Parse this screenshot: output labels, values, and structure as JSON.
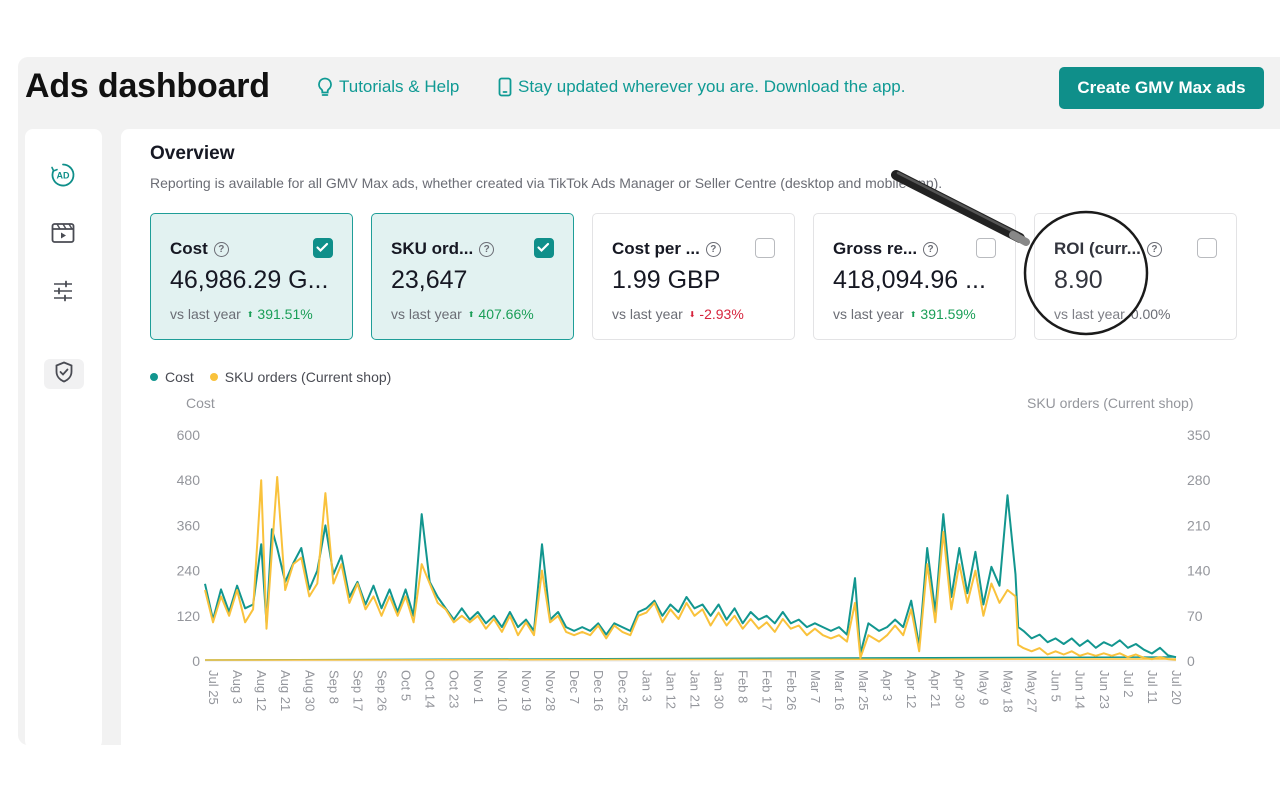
{
  "header": {
    "title": "Ads dashboard",
    "tutorials": "Tutorials & Help",
    "download": "Stay updated wherever you are. Download the app.",
    "create_button": "Create GMV Max ads"
  },
  "sidebar": {
    "items": [
      {
        "icon": "ad-icon",
        "active": true
      },
      {
        "icon": "video-icon",
        "active": false
      },
      {
        "icon": "settings-sliders-icon",
        "active": false
      },
      {
        "icon": "shield-check-icon",
        "active": false
      }
    ]
  },
  "overview": {
    "title": "Overview",
    "subtitle": "Reporting is available for all GMV Max ads, whether created via TikTok Ads Manager or Seller Centre (desktop and mobile app).",
    "vs_label": "vs last year",
    "cards": [
      {
        "label": "Cost",
        "value": "46,986.29 G...",
        "delta": "391.51%",
        "direction": "up",
        "selected": true
      },
      {
        "label": "SKU ord...",
        "value": "23,647",
        "delta": "407.66%",
        "direction": "up",
        "selected": true
      },
      {
        "label": "Cost per ...",
        "value": "1.99 GBP",
        "delta": "-2.93%",
        "direction": "down",
        "selected": false
      },
      {
        "label": "Gross re...",
        "value": "418,094.96 ...",
        "delta": "391.59%",
        "direction": "up",
        "selected": false
      },
      {
        "label": "ROI (curr...",
        "value": "8.90",
        "delta": "0.00%",
        "direction": "none",
        "selected": false
      }
    ]
  },
  "colors": {
    "accent": "#0f8f8a",
    "cost_series": "#12968f",
    "orders_series": "#f9c23c",
    "up": "#1a9e57",
    "down": "#d6243d"
  },
  "chart_data": {
    "type": "line",
    "legend": [
      "Cost",
      "SKU orders (Current shop)"
    ],
    "y_left_label": "Cost",
    "y_right_label": "SKU orders (Current shop)",
    "y_left_ticks": [
      "0",
      "120",
      "240",
      "360",
      "480",
      "600"
    ],
    "y_right_ticks": [
      "0",
      "70",
      "140",
      "210",
      "280",
      "350"
    ],
    "y_left_range": [
      0,
      600
    ],
    "y_right_range": [
      0,
      350
    ],
    "x_tick_labels": [
      "Jul 25",
      "Aug 3",
      "Aug 12",
      "Aug 21",
      "Aug 30",
      "Sep 8",
      "Sep 17",
      "Sep 26",
      "Oct 5",
      "Oct 14",
      "Oct 23",
      "Nov 1",
      "Nov 10",
      "Nov 19",
      "Nov 28",
      "Dec 7",
      "Dec 16",
      "Dec 25",
      "Jan 3",
      "Jan 12",
      "Jan 21",
      "Jan 30",
      "Feb 8",
      "Feb 17",
      "Feb 26",
      "Mar 7",
      "Mar 16",
      "Mar 25",
      "Apr 3",
      "Apr 12",
      "Apr 21",
      "Apr 30",
      "May 9",
      "May 18",
      "May 27",
      "Jun 5",
      "Jun 14",
      "Jun 23",
      "Jul 2",
      "Jul 11",
      "Jul 20"
    ],
    "grid": false,
    "series": [
      {
        "name": "Cost",
        "axis": "left",
        "points": [
          [
            "Jul 25",
            205
          ],
          [
            "Jul 28",
            110
          ],
          [
            "Jul 31",
            190
          ],
          [
            "Aug 3",
            130
          ],
          [
            "Aug 6",
            200
          ],
          [
            "Aug 9",
            140
          ],
          [
            "Aug 12",
            150
          ],
          [
            "Aug 15",
            310
          ],
          [
            "Aug 17",
            100
          ],
          [
            "Aug 19",
            350
          ],
          [
            "Aug 21",
            300
          ],
          [
            "Aug 24",
            210
          ],
          [
            "Aug 27",
            260
          ],
          [
            "Aug 30",
            300
          ],
          [
            "Sep 2",
            190
          ],
          [
            "Sep 5",
            240
          ],
          [
            "Sep 8",
            360
          ],
          [
            "Sep 11",
            230
          ],
          [
            "Sep 14",
            280
          ],
          [
            "Sep 17",
            170
          ],
          [
            "Sep 20",
            210
          ],
          [
            "Sep 23",
            150
          ],
          [
            "Sep 26",
            200
          ],
          [
            "Sep 29",
            140
          ],
          [
            "Oct 2",
            190
          ],
          [
            "Oct 5",
            130
          ],
          [
            "Oct 8",
            190
          ],
          [
            "Oct 11",
            120
          ],
          [
            "Oct 14",
            390
          ],
          [
            "Oct 17",
            210
          ],
          [
            "Oct 20",
            170
          ],
          [
            "Oct 23",
            140
          ],
          [
            "Oct 26",
            110
          ],
          [
            "Oct 29",
            140
          ],
          [
            "Nov 1",
            110
          ],
          [
            "Nov 4",
            130
          ],
          [
            "Nov 7",
            100
          ],
          [
            "Nov 10",
            120
          ],
          [
            "Nov 13",
            90
          ],
          [
            "Nov 16",
            130
          ],
          [
            "Nov 19",
            90
          ],
          [
            "Nov 22",
            110
          ],
          [
            "Nov 25",
            80
          ],
          [
            "Nov 28",
            310
          ],
          [
            "Dec 1",
            110
          ],
          [
            "Dec 4",
            130
          ],
          [
            "Dec 7",
            90
          ],
          [
            "Dec 10",
            80
          ],
          [
            "Dec 13",
            90
          ],
          [
            "Dec 16",
            80
          ],
          [
            "Dec 19",
            100
          ],
          [
            "Dec 22",
            70
          ],
          [
            "Dec 25",
            100
          ],
          [
            "Dec 28",
            90
          ],
          [
            "Dec 31",
            80
          ],
          [
            "Jan 3",
            130
          ],
          [
            "Jan 6",
            140
          ],
          [
            "Jan 9",
            160
          ],
          [
            "Jan 12",
            120
          ],
          [
            "Jan 15",
            150
          ],
          [
            "Jan 18",
            130
          ],
          [
            "Jan 21",
            170
          ],
          [
            "Jan 24",
            140
          ],
          [
            "Jan 27",
            150
          ],
          [
            "Jan 30",
            120
          ],
          [
            "Feb 2",
            150
          ],
          [
            "Feb 5",
            110
          ],
          [
            "Feb 8",
            140
          ],
          [
            "Feb 11",
            100
          ],
          [
            "Feb 14",
            130
          ],
          [
            "Feb 17",
            110
          ],
          [
            "Feb 20",
            120
          ],
          [
            "Feb 23",
            100
          ],
          [
            "Feb 26",
            130
          ],
          [
            "Mar 1",
            100
          ],
          [
            "Mar 4",
            110
          ],
          [
            "Mar 7",
            90
          ],
          [
            "Mar 10",
            100
          ],
          [
            "Mar 13",
            90
          ],
          [
            "Mar 16",
            80
          ],
          [
            "Mar 19",
            90
          ],
          [
            "Mar 22",
            70
          ],
          [
            "Mar 25",
            220
          ],
          [
            "Mar 27",
            20
          ],
          [
            "Mar 30",
            100
          ],
          [
            "Apr 3",
            80
          ],
          [
            "Apr 6",
            90
          ],
          [
            "Apr 9",
            110
          ],
          [
            "Apr 12",
            90
          ],
          [
            "Apr 15",
            160
          ],
          [
            "Apr 18",
            40
          ],
          [
            "Apr 21",
            300
          ],
          [
            "Apr 24",
            130
          ],
          [
            "Apr 27",
            390
          ],
          [
            "Apr 30",
            170
          ],
          [
            "May 3",
            300
          ],
          [
            "May 6",
            180
          ],
          [
            "May 9",
            290
          ],
          [
            "May 12",
            150
          ],
          [
            "May 15",
            250
          ],
          [
            "May 18",
            200
          ],
          [
            "May 21",
            440
          ],
          [
            "May 24",
            230
          ],
          [
            "May 25",
            90
          ],
          [
            "May 27",
            80
          ],
          [
            "May 30",
            60
          ],
          [
            "Jun 2",
            70
          ],
          [
            "Jun 5",
            50
          ],
          [
            "Jun 8",
            60
          ],
          [
            "Jun 11",
            45
          ],
          [
            "Jun 14",
            60
          ],
          [
            "Jun 17",
            40
          ],
          [
            "Jun 20",
            55
          ],
          [
            "Jun 23",
            35
          ],
          [
            "Jun 26",
            50
          ],
          [
            "Jun 29",
            40
          ],
          [
            "Jul 2",
            55
          ],
          [
            "Jul 5",
            35
          ],
          [
            "Jul 8",
            45
          ],
          [
            "Jul 11",
            30
          ],
          [
            "Jul 14",
            20
          ],
          [
            "Jul 17",
            35
          ],
          [
            "Jul 20",
            15
          ],
          [
            "Jul 23",
            10
          ]
        ]
      },
      {
        "name": "SKU orders (Current shop)",
        "axis": "right",
        "points": [
          [
            "Jul 25",
            110
          ],
          [
            "Jul 28",
            60
          ],
          [
            "Jul 31",
            100
          ],
          [
            "Aug 3",
            70
          ],
          [
            "Aug 6",
            110
          ],
          [
            "Aug 9",
            60
          ],
          [
            "Aug 12",
            80
          ],
          [
            "Aug 15",
            280
          ],
          [
            "Aug 17",
            50
          ],
          [
            "Aug 19",
            170
          ],
          [
            "Aug 21",
            285
          ],
          [
            "Aug 24",
            110
          ],
          [
            "Aug 27",
            150
          ],
          [
            "Aug 30",
            160
          ],
          [
            "Sep 2",
            100
          ],
          [
            "Sep 5",
            120
          ],
          [
            "Sep 8",
            260
          ],
          [
            "Sep 11",
            120
          ],
          [
            "Sep 14",
            150
          ],
          [
            "Sep 17",
            90
          ],
          [
            "Sep 20",
            120
          ],
          [
            "Sep 23",
            80
          ],
          [
            "Sep 26",
            100
          ],
          [
            "Sep 29",
            70
          ],
          [
            "Oct 2",
            100
          ],
          [
            "Oct 5",
            70
          ],
          [
            "Oct 8",
            100
          ],
          [
            "Oct 11",
            60
          ],
          [
            "Oct 14",
            150
          ],
          [
            "Oct 17",
            120
          ],
          [
            "Oct 20",
            90
          ],
          [
            "Oct 23",
            80
          ],
          [
            "Oct 26",
            60
          ],
          [
            "Oct 29",
            70
          ],
          [
            "Nov 1",
            60
          ],
          [
            "Nov 4",
            70
          ],
          [
            "Nov 7",
            50
          ],
          [
            "Nov 10",
            65
          ],
          [
            "Nov 13",
            45
          ],
          [
            "Nov 16",
            70
          ],
          [
            "Nov 19",
            40
          ],
          [
            "Nov 22",
            60
          ],
          [
            "Nov 25",
            40
          ],
          [
            "Nov 28",
            140
          ],
          [
            "Dec 1",
            60
          ],
          [
            "Dec 4",
            70
          ],
          [
            "Dec 7",
            45
          ],
          [
            "Dec 10",
            40
          ],
          [
            "Dec 13",
            45
          ],
          [
            "Dec 16",
            40
          ],
          [
            "Dec 19",
            55
          ],
          [
            "Dec 22",
            35
          ],
          [
            "Dec 25",
            55
          ],
          [
            "Dec 28",
            45
          ],
          [
            "Dec 31",
            40
          ],
          [
            "Jan 3",
            70
          ],
          [
            "Jan 6",
            75
          ],
          [
            "Jan 9",
            90
          ],
          [
            "Jan 12",
            60
          ],
          [
            "Jan 15",
            80
          ],
          [
            "Jan 18",
            65
          ],
          [
            "Jan 21",
            90
          ],
          [
            "Jan 24",
            70
          ],
          [
            "Jan 27",
            80
          ],
          [
            "Jan 30",
            55
          ],
          [
            "Feb 2",
            75
          ],
          [
            "Feb 5",
            55
          ],
          [
            "Feb 8",
            70
          ],
          [
            "Feb 11",
            50
          ],
          [
            "Feb 14",
            65
          ],
          [
            "Feb 17",
            50
          ],
          [
            "Feb 20",
            60
          ],
          [
            "Feb 23",
            45
          ],
          [
            "Feb 26",
            65
          ],
          [
            "Mar 1",
            50
          ],
          [
            "Mar 4",
            55
          ],
          [
            "Mar 7",
            40
          ],
          [
            "Mar 10",
            50
          ],
          [
            "Mar 13",
            40
          ],
          [
            "Mar 16",
            35
          ],
          [
            "Mar 19",
            40
          ],
          [
            "Mar 22",
            30
          ],
          [
            "Mar 25",
            90
          ],
          [
            "Mar 27",
            5
          ],
          [
            "Mar 30",
            40
          ],
          [
            "Apr 3",
            30
          ],
          [
            "Apr 6",
            40
          ],
          [
            "Apr 9",
            55
          ],
          [
            "Apr 12",
            40
          ],
          [
            "Apr 15",
            80
          ],
          [
            "Apr 18",
            15
          ],
          [
            "Apr 21",
            150
          ],
          [
            "Apr 24",
            60
          ],
          [
            "Apr 27",
            200
          ],
          [
            "Apr 30",
            80
          ],
          [
            "May 3",
            150
          ],
          [
            "May 6",
            90
          ],
          [
            "May 9",
            140
          ],
          [
            "May 12",
            70
          ],
          [
            "May 15",
            120
          ],
          [
            "May 18",
            90
          ],
          [
            "May 21",
            110
          ],
          [
            "May 24",
            100
          ],
          [
            "May 25",
            25
          ],
          [
            "May 27",
            20
          ],
          [
            "May 30",
            15
          ],
          [
            "Jun 2",
            20
          ],
          [
            "Jun 5",
            10
          ],
          [
            "Jun 8",
            15
          ],
          [
            "Jun 11",
            10
          ],
          [
            "Jun 14",
            15
          ],
          [
            "Jun 17",
            8
          ],
          [
            "Jun 20",
            12
          ],
          [
            "Jun 23",
            8
          ],
          [
            "Jun 26",
            12
          ],
          [
            "Jun 29",
            8
          ],
          [
            "Jul 2",
            12
          ],
          [
            "Jul 5",
            6
          ],
          [
            "Jul 8",
            10
          ],
          [
            "Jul 11",
            5
          ],
          [
            "Jul 14",
            3
          ],
          [
            "Jul 17",
            6
          ],
          [
            "Jul 20",
            3
          ],
          [
            "Jul 23",
            2
          ]
        ]
      }
    ]
  }
}
